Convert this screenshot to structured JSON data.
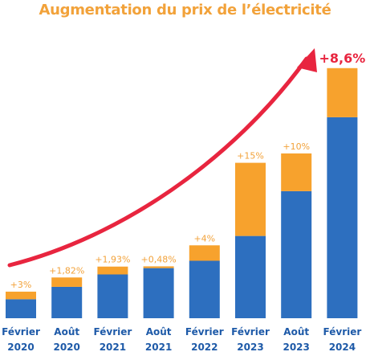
{
  "title": "Augmentation du prix de l’électricité",
  "colors": {
    "title": "#f2a23a",
    "base": "#2d6fbf",
    "increase": "#f7a22d",
    "arrow": "#e8253f",
    "label_orange": "#f2a23a",
    "label_red": "#e8253f",
    "axis_text": "#1e5aa8"
  },
  "chart_data": {
    "type": "bar",
    "title": "Augmentation du prix de l’électricité",
    "xlabel": "",
    "ylabel": "",
    "categories": [
      [
        "Février",
        "2020"
      ],
      [
        "Août",
        "2020"
      ],
      [
        "Février",
        "2021"
      ],
      [
        "Août",
        "2021"
      ],
      [
        "Février",
        "2022"
      ],
      [
        "Février",
        "2023"
      ],
      [
        "Août",
        "2023"
      ],
      [
        "Février",
        "2024"
      ]
    ],
    "series": [
      {
        "values": [
          7.5,
          12.4,
          17.3,
          19.8,
          22.7,
          32.5,
          50.2,
          79.4
        ]
      },
      {
        "values": [
          3,
          3.7,
          3.1,
          0.7,
          6.1,
          28.9,
          14.9,
          19.4
        ]
      }
    ],
    "data_labels": [
      "+3%",
      "+1,82%",
      "+1,93%",
      "+0,48%",
      "+4%",
      "+15%",
      "+10%",
      "+8,6%"
    ],
    "ylim": [
      0,
      100
    ],
    "grid": false,
    "legend": "none",
    "annotation": "upward curved arrow"
  }
}
